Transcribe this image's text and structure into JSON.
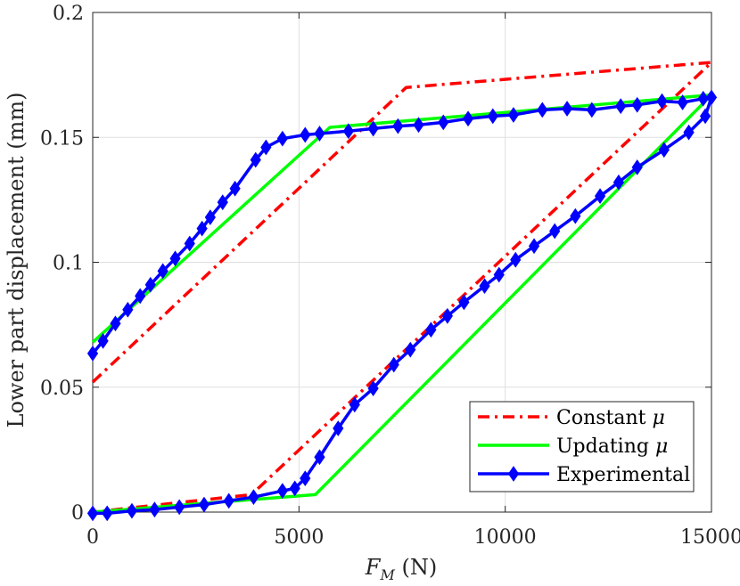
{
  "chart_data": {
    "type": "line",
    "title": "",
    "xlabel": "F_M (N)",
    "xlabel_main": "F",
    "xlabel_sub": "M",
    "xlabel_unit": " (N)",
    "ylabel": "Lower part displacement (mm)",
    "xlim": [
      0,
      15000
    ],
    "ylim": [
      0,
      0.2
    ],
    "xticks": [
      0,
      5000,
      10000,
      15000
    ],
    "xtick_labels": [
      "0",
      "5000",
      "10000",
      "15000"
    ],
    "yticks": [
      0,
      0.05,
      0.1,
      0.15,
      0.2
    ],
    "ytick_labels": [
      "0",
      "0.05",
      "0.1",
      "0.15",
      "0.2"
    ],
    "grid": true,
    "legend_position": "bottom-right",
    "series": [
      {
        "name": "Constant μ",
        "legend_main": "Constant ",
        "legend_symbol": "μ",
        "color": "#ff0000",
        "style": "dashdot",
        "marker": "none",
        "points": [
          [
            0,
            0.052
          ],
          [
            7600,
            0.17
          ],
          [
            15000,
            0.18
          ],
          [
            3850,
            0.007
          ],
          [
            0,
            0
          ]
        ]
      },
      {
        "name": "Updating μ",
        "legend_main": "Updating ",
        "legend_symbol": "μ",
        "color": "#00ff00",
        "style": "solid",
        "marker": "none",
        "points": [
          [
            0,
            0.068
          ],
          [
            5750,
            0.154
          ],
          [
            15000,
            0.167
          ],
          [
            5400,
            0.007
          ],
          [
            0,
            0
          ]
        ]
      },
      {
        "name": "Experimental",
        "legend_main": "Experimental",
        "legend_symbol": "",
        "color": "#0000ff",
        "style": "solid",
        "marker": "diamond",
        "points": [
          [
            0,
            0.0635
          ],
          [
            250,
            0.0685
          ],
          [
            550,
            0.0755
          ],
          [
            850,
            0.081
          ],
          [
            1150,
            0.0865
          ],
          [
            1400,
            0.091
          ],
          [
            1700,
            0.0965
          ],
          [
            2000,
            0.1015
          ],
          [
            2350,
            0.1075
          ],
          [
            2650,
            0.1135
          ],
          [
            2850,
            0.118
          ],
          [
            3150,
            0.124
          ],
          [
            3450,
            0.1295
          ],
          [
            3950,
            0.141
          ],
          [
            4200,
            0.146
          ],
          [
            4600,
            0.1495
          ],
          [
            5150,
            0.151
          ],
          [
            5500,
            0.1515
          ],
          [
            6200,
            0.1525
          ],
          [
            6800,
            0.1535
          ],
          [
            7400,
            0.1545
          ],
          [
            7900,
            0.155
          ],
          [
            8500,
            0.156
          ],
          [
            9100,
            0.1575
          ],
          [
            9700,
            0.1585
          ],
          [
            10200,
            0.159
          ],
          [
            10900,
            0.161
          ],
          [
            11500,
            0.1615
          ],
          [
            12100,
            0.161
          ],
          [
            12800,
            0.1625
          ],
          [
            13200,
            0.163
          ],
          [
            13800,
            0.1645
          ],
          [
            14300,
            0.164
          ],
          [
            14800,
            0.1655
          ],
          [
            15000,
            0.166
          ],
          [
            14850,
            0.1585
          ],
          [
            14450,
            0.152
          ],
          [
            13850,
            0.145
          ],
          [
            13200,
            0.138
          ],
          [
            12750,
            0.132
          ],
          [
            12300,
            0.1265
          ],
          [
            11700,
            0.1185
          ],
          [
            11200,
            0.1125
          ],
          [
            10700,
            0.1065
          ],
          [
            10250,
            0.101
          ],
          [
            9850,
            0.095
          ],
          [
            9500,
            0.0905
          ],
          [
            9000,
            0.084
          ],
          [
            8600,
            0.0785
          ],
          [
            8200,
            0.073
          ],
          [
            7700,
            0.065
          ],
          [
            7300,
            0.059
          ],
          [
            6800,
            0.0495
          ],
          [
            6350,
            0.043
          ],
          [
            5950,
            0.0335
          ],
          [
            5500,
            0.022
          ],
          [
            5150,
            0.0135
          ],
          [
            4900,
            0.0095
          ],
          [
            4600,
            0.0085
          ],
          [
            3900,
            0.006
          ],
          [
            3300,
            0.0045
          ],
          [
            2700,
            0.003
          ],
          [
            2100,
            0.002
          ],
          [
            1500,
            0.001
          ],
          [
            950,
            0.0005
          ],
          [
            350,
            -0.0005
          ],
          [
            0,
            -0.0005
          ]
        ]
      }
    ]
  }
}
